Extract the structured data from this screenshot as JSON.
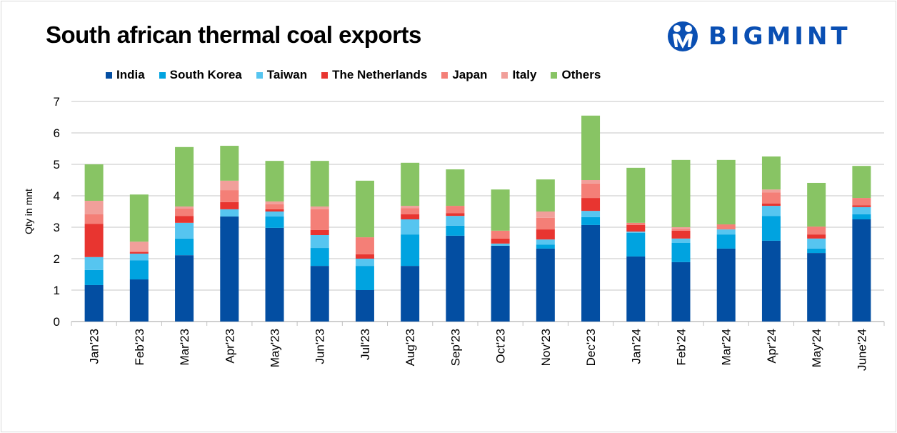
{
  "chart_data": {
    "type": "bar",
    "stacked": true,
    "title": "South african thermal coal exports",
    "xlabel": "",
    "ylabel": "Qty in mnt",
    "ylim": [
      0,
      7
    ],
    "yticks": [
      "0",
      "1",
      "2",
      "3",
      "4",
      "5",
      "6",
      "7"
    ],
    "grid": true,
    "legend_position": "top",
    "categories": [
      "Jan'23",
      "Feb'23",
      "Mar'23",
      "Apr'23",
      "May'23",
      "Jun'23",
      "Jul'23",
      "Aug'23",
      "Sep'23",
      "Oct'23",
      "Nov'23",
      "Dec'23",
      "Jan'24",
      "Feb'24",
      "Mar'24",
      "Apr'24",
      "May'24",
      "June'24"
    ],
    "series": [
      {
        "name": "India",
        "color": "#034ea2",
        "values": [
          1.16,
          1.34,
          2.11,
          3.34,
          2.98,
          1.77,
          1.0,
          1.77,
          2.73,
          2.41,
          2.32,
          3.07,
          2.07,
          1.89,
          2.32,
          2.57,
          2.18,
          3.25
        ]
      },
      {
        "name": "South Korea",
        "color": "#00a3e0",
        "values": [
          0.48,
          0.61,
          0.53,
          0.0,
          0.36,
          0.57,
          0.77,
          1.0,
          0.32,
          0.0,
          0.13,
          0.25,
          0.75,
          0.61,
          0.45,
          0.79,
          0.14,
          0.16
        ]
      },
      {
        "name": "Taiwan",
        "color": "#56c5f0",
        "values": [
          0.41,
          0.21,
          0.5,
          0.23,
          0.16,
          0.41,
          0.23,
          0.48,
          0.31,
          0.07,
          0.16,
          0.2,
          0.04,
          0.14,
          0.16,
          0.32,
          0.32,
          0.23
        ]
      },
      {
        "name": "The Netherlands",
        "color": "#e83530",
        "values": [
          1.06,
          0.05,
          0.22,
          0.23,
          0.07,
          0.16,
          0.14,
          0.16,
          0.09,
          0.16,
          0.32,
          0.41,
          0.21,
          0.25,
          0.0,
          0.07,
          0.13,
          0.06
        ]
      },
      {
        "name": "Japan",
        "color": "#f47f77",
        "values": [
          0.3,
          0.03,
          0.23,
          0.38,
          0.16,
          0.66,
          0.54,
          0.2,
          0.23,
          0.25,
          0.37,
          0.46,
          0.07,
          0.05,
          0.16,
          0.36,
          0.25,
          0.23
        ]
      },
      {
        "name": "Italy",
        "color": "#f19f9a",
        "values": [
          0.43,
          0.3,
          0.07,
          0.3,
          0.09,
          0.09,
          0.0,
          0.07,
          0.0,
          0.0,
          0.2,
          0.11,
          0.0,
          0.06,
          0.0,
          0.09,
          0.0,
          0.0
        ]
      },
      {
        "name": "Others",
        "color": "#88c464",
        "values": [
          1.16,
          1.5,
          1.89,
          1.11,
          1.29,
          1.45,
          1.8,
          1.37,
          1.16,
          1.31,
          1.02,
          2.05,
          1.75,
          2.14,
          2.05,
          1.05,
          1.39,
          1.02
        ]
      }
    ]
  },
  "logo": {
    "text": "BIGMINT",
    "color": "#0a4fb3"
  }
}
